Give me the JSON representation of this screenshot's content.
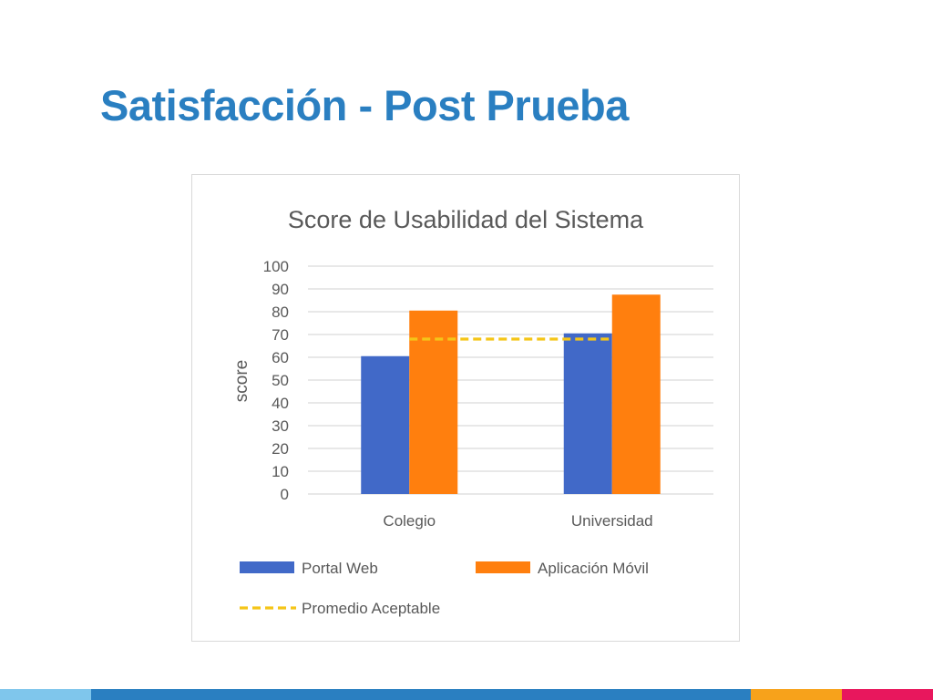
{
  "slide": {
    "title": "Satisfacción - Post Prueba",
    "bottom_bar_colors": [
      "#7FC6EC",
      "#2A7FC1",
      "#F7A21B",
      "#E8175D"
    ]
  },
  "chart_data": {
    "type": "bar",
    "title": "Score de Usabilidad del Sistema",
    "xlabel": "",
    "ylabel": "score",
    "categories": [
      "Colegio",
      "Universidad"
    ],
    "series": [
      {
        "name": "Portal Web",
        "values": [
          60.5,
          70.5
        ],
        "color": "#4169C8"
      },
      {
        "name": "Aplicación Móvil",
        "values": [
          80.5,
          87.5
        ],
        "color": "#FF7F0E"
      }
    ],
    "reference_line": {
      "name": "Promedio Aceptable",
      "value": 68,
      "color": "#F5C518",
      "style": "dashed"
    },
    "ylim": [
      0,
      100
    ],
    "yticks": [
      0,
      10,
      20,
      30,
      40,
      50,
      60,
      70,
      80,
      90,
      100
    ],
    "grid": true,
    "legend_position": "bottom"
  }
}
